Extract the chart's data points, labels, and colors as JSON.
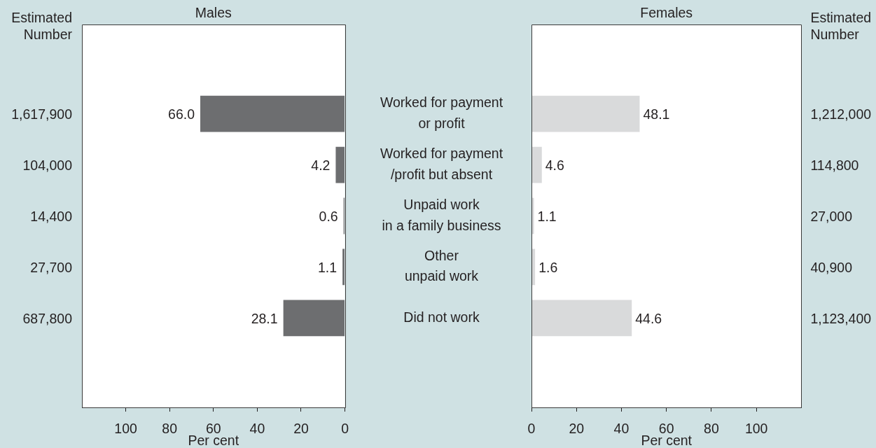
{
  "chart_data": [
    {
      "type": "bar",
      "orientation": "horizontal",
      "title": "Males",
      "xlabel": "Per cent",
      "categories": [
        "Worked for payment\nor profit",
        "Worked for payment\n/profit but absent",
        "Unpaid work\nin a family business",
        "Other\nunpaid work",
        "Did not work"
      ],
      "values": [
        66.0,
        4.2,
        0.6,
        1.1,
        28.1
      ],
      "value_labels": [
        "66.0",
        "4.2",
        "0.6",
        "1.1",
        "28.1"
      ],
      "color": "#6d6e70",
      "xlim": [
        120,
        0
      ],
      "xticks": [
        100,
        80,
        60,
        40,
        20,
        0
      ],
      "tick_labels": "x",
      "annotations": [
        "Estimated Number",
        "1,617,900",
        "104,000",
        "14,400",
        "27,700",
        "687,800"
      ]
    },
    {
      "type": "bar",
      "orientation": "horizontal",
      "title": "Females",
      "xlabel": "Per cent",
      "categories": [
        "Worked for payment\nor profit",
        "Worked for payment\n/profit but absent",
        "Unpaid work\nin a family business",
        "Other\nunpaid work",
        "Did not work"
      ],
      "values": [
        48.1,
        4.6,
        1.1,
        1.6,
        44.6
      ],
      "value_labels": [
        "48.1",
        "4.6",
        "1.1",
        "1.6",
        "44.6"
      ],
      "color": "#d9dadb",
      "xlim": [
        0,
        120
      ],
      "xticks": [
        0,
        20,
        40,
        60,
        80,
        100
      ],
      "annotations": [
        "Estimated Number",
        "1,212,000",
        "114,800",
        "27,000",
        "40,900",
        "1,123,400"
      ]
    }
  ]
}
